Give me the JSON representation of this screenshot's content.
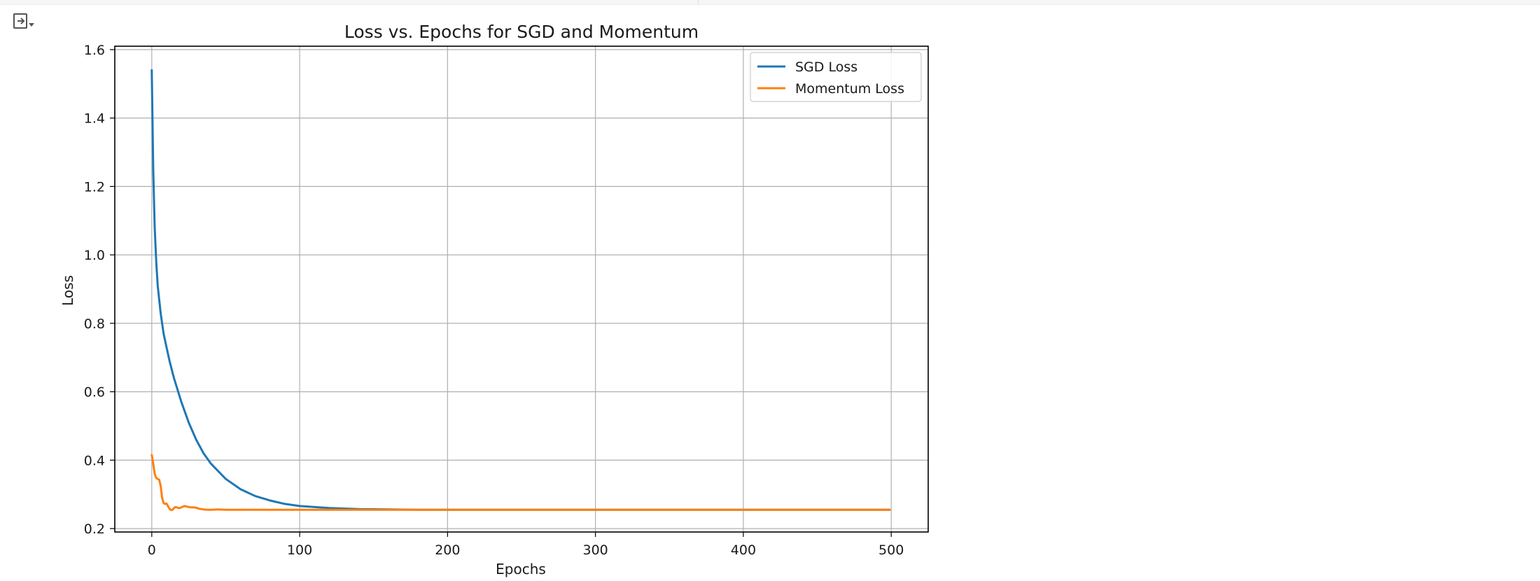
{
  "output_toggle": {
    "icon": "output-collapse-icon"
  },
  "chart_data": {
    "type": "line",
    "title": "Loss vs. Epochs for SGD and Momentum",
    "xlabel": "Epochs",
    "ylabel": "Loss",
    "xlim": [
      -25,
      525
    ],
    "ylim": [
      0.19,
      1.61
    ],
    "xticks": [
      0,
      100,
      200,
      300,
      400,
      500
    ],
    "yticks": [
      0.2,
      0.4,
      0.6,
      0.8,
      1.0,
      1.2,
      1.4,
      1.6
    ],
    "xtick_labels": [
      "0",
      "100",
      "200",
      "300",
      "400",
      "500"
    ],
    "ytick_labels": [
      "0.2",
      "0.4",
      "0.6",
      "0.8",
      "1.0",
      "1.2",
      "1.4",
      "1.6"
    ],
    "grid": true,
    "legend": "top-right",
    "series": [
      {
        "name": "SGD Loss",
        "color": "#1f77b4",
        "x": [
          0,
          1,
          2,
          3,
          4,
          5,
          6,
          7,
          8,
          10,
          12,
          15,
          20,
          25,
          30,
          35,
          40,
          50,
          60,
          70,
          80,
          90,
          100,
          120,
          140,
          160,
          180,
          200,
          250,
          300,
          350,
          400,
          450,
          499
        ],
        "y": [
          1.54,
          1.25,
          1.08,
          0.98,
          0.91,
          0.87,
          0.83,
          0.8,
          0.77,
          0.73,
          0.69,
          0.64,
          0.57,
          0.51,
          0.46,
          0.42,
          0.39,
          0.345,
          0.315,
          0.295,
          0.282,
          0.272,
          0.266,
          0.26,
          0.257,
          0.256,
          0.255,
          0.255,
          0.255,
          0.255,
          0.255,
          0.255,
          0.255,
          0.255
        ]
      },
      {
        "name": "Momentum Loss",
        "color": "#ff7f0e",
        "x": [
          0,
          1,
          2,
          3,
          4,
          5,
          6,
          7,
          8,
          9,
          10,
          11,
          12,
          13,
          14,
          15,
          16,
          17,
          18,
          19,
          20,
          22,
          24,
          26,
          28,
          30,
          32,
          35,
          38,
          40,
          45,
          50,
          60,
          80,
          100,
          150,
          200,
          300,
          400,
          499
        ],
        "y": [
          0.415,
          0.39,
          0.36,
          0.348,
          0.345,
          0.343,
          0.325,
          0.29,
          0.275,
          0.272,
          0.273,
          0.265,
          0.258,
          0.254,
          0.255,
          0.26,
          0.263,
          0.262,
          0.26,
          0.26,
          0.262,
          0.266,
          0.264,
          0.262,
          0.262,
          0.261,
          0.258,
          0.256,
          0.255,
          0.255,
          0.256,
          0.255,
          0.255,
          0.255,
          0.255,
          0.255,
          0.255,
          0.255,
          0.255,
          0.255
        ]
      }
    ]
  }
}
